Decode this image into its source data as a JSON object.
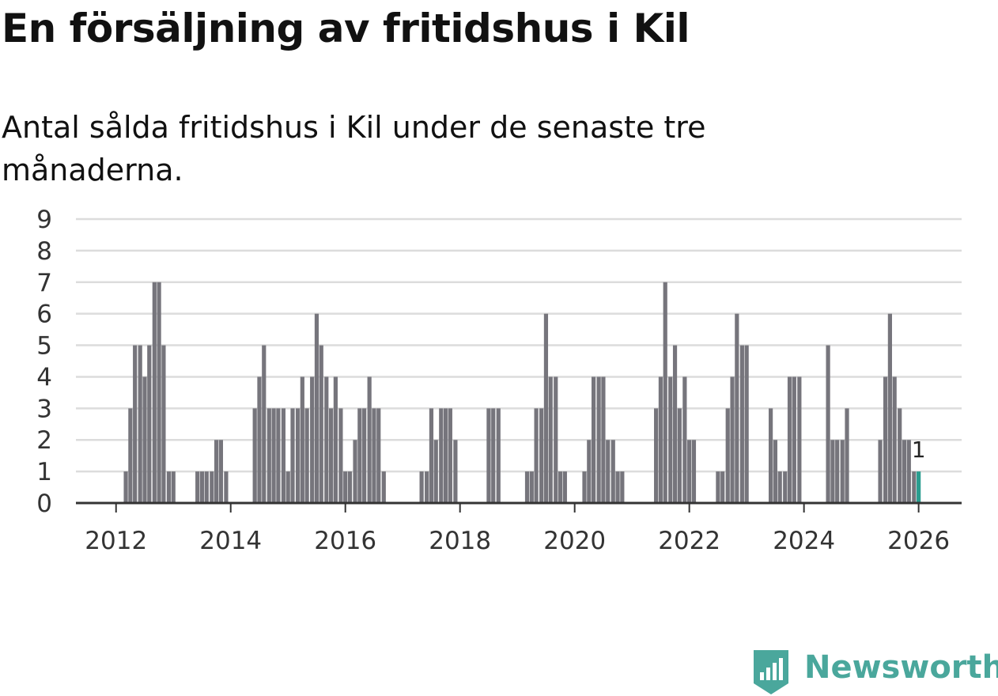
{
  "title": "En försäljning av fritidshus i Kil",
  "subtitle": "Antal sålda fritidshus i Kil under de senaste tre månaderna.",
  "brand": {
    "name": "Newsworthy",
    "logo_icon": "newsworthy-bar-chart-icon"
  },
  "colors": {
    "bar": "#76757c",
    "highlight": "#2a9d8f",
    "grid": "#dcdcdc",
    "axis": "#333333",
    "brand": "#4aa79c"
  },
  "chart_data": {
    "type": "bar",
    "title": "En försäljning av fritidshus i Kil",
    "subtitle": "Antal sålda fritidshus i Kil under de senaste tre månaderna.",
    "xlabel": "",
    "ylabel": "",
    "ylim": [
      0,
      9
    ],
    "xlim": [
      2011.3,
      2026.75
    ],
    "grid": true,
    "y_ticks": [
      0,
      1,
      2,
      3,
      4,
      5,
      6,
      7,
      8,
      9
    ],
    "x_ticks": [
      2012,
      2014,
      2016,
      2018,
      2020,
      2022,
      2024,
      2026
    ],
    "highlight_label": "1",
    "series": [
      {
        "x": [
          2012.17,
          2012.25,
          2012.33,
          2012.42,
          2012.5,
          2012.58,
          2012.67,
          2012.75,
          2012.83,
          2012.92,
          2013.0,
          2013.42,
          2013.5,
          2013.58,
          2013.67,
          2013.75,
          2013.83,
          2013.92,
          2014.42,
          2014.5,
          2014.58,
          2014.67,
          2014.75,
          2014.83,
          2014.92,
          2015.0,
          2015.08,
          2015.17,
          2015.25,
          2015.33,
          2015.42,
          2015.5,
          2015.58,
          2015.67,
          2015.75,
          2015.83,
          2015.92,
          2016.0,
          2016.08,
          2016.17,
          2016.25,
          2016.33,
          2016.42,
          2016.5,
          2016.58,
          2016.67,
          2016.75,
          2017.33,
          2017.42,
          2017.5,
          2017.58,
          2017.67,
          2017.75,
          2017.83,
          2017.92,
          2018.5,
          2018.58,
          2018.67,
          2019.17,
          2019.25,
          2019.33,
          2019.42,
          2019.5,
          2019.58,
          2019.67,
          2019.75,
          2019.83,
          2020.17,
          2020.25,
          2020.33,
          2020.42,
          2020.5,
          2020.58,
          2020.67,
          2020.75,
          2020.83,
          2021.42,
          2021.5,
          2021.58,
          2021.67,
          2021.75,
          2021.83,
          2021.92,
          2022.0,
          2022.08,
          2022.5,
          2022.58,
          2022.67,
          2022.75,
          2022.83,
          2022.92,
          2023.0,
          2023.42,
          2023.5,
          2023.58,
          2023.67,
          2023.75,
          2023.83,
          2023.92,
          2024.42,
          2024.5,
          2024.58,
          2024.67,
          2024.75,
          2025.33,
          2025.42,
          2025.5,
          2025.58,
          2025.67,
          2025.75,
          2025.83,
          2025.92
        ],
        "values": [
          1,
          3,
          5,
          5,
          4,
          5,
          7,
          7,
          5,
          1,
          1,
          1,
          1,
          1,
          1,
          2,
          2,
          1,
          3,
          4,
          5,
          3,
          3,
          3,
          3,
          1,
          3,
          3,
          4,
          3,
          4,
          6,
          5,
          4,
          3,
          4,
          3,
          1,
          1,
          2,
          3,
          3,
          4,
          3,
          3,
          1,
          0,
          1,
          1,
          3,
          2,
          3,
          3,
          3,
          2,
          3,
          3,
          3,
          1,
          1,
          3,
          3,
          6,
          4,
          4,
          1,
          1,
          1,
          2,
          4,
          4,
          4,
          2,
          2,
          1,
          1,
          3,
          4,
          7,
          4,
          5,
          3,
          4,
          2,
          2,
          1,
          1,
          3,
          4,
          6,
          5,
          5,
          3,
          2,
          1,
          1,
          4,
          4,
          4,
          5,
          2,
          2,
          2,
          3,
          2,
          4,
          6,
          4,
          3,
          2,
          2,
          1
        ]
      }
    ],
    "highlight": {
      "x": 2026.0,
      "value": 1
    }
  }
}
